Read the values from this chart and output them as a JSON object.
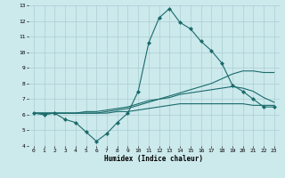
{
  "xlabel": "Humidex (Indice chaleur)",
  "ylabel": "",
  "xlim": [
    -0.5,
    23.5
  ],
  "ylim": [
    4,
    13
  ],
  "xticks": [
    0,
    1,
    2,
    3,
    4,
    5,
    6,
    7,
    8,
    9,
    10,
    11,
    12,
    13,
    14,
    15,
    16,
    17,
    18,
    19,
    20,
    21,
    22,
    23
  ],
  "yticks": [
    4,
    5,
    6,
    7,
    8,
    9,
    10,
    11,
    12,
    13
  ],
  "background_color": "#cce9ec",
  "grid_color": "#aacfd4",
  "line_color": "#1a6b6b",
  "line1_x": [
    0,
    1,
    2,
    3,
    4,
    5,
    6,
    7,
    8,
    9,
    10,
    11,
    12,
    13,
    14,
    15,
    16,
    17,
    18,
    19,
    20,
    21,
    22,
    23
  ],
  "line1_y": [
    6.1,
    6.0,
    6.1,
    5.7,
    5.5,
    4.9,
    4.3,
    4.8,
    5.5,
    6.1,
    7.5,
    10.6,
    12.2,
    12.8,
    11.9,
    11.5,
    10.7,
    10.1,
    9.3,
    7.9,
    7.5,
    7.0,
    6.5,
    6.5
  ],
  "line2_x": [
    0,
    1,
    2,
    3,
    4,
    5,
    6,
    7,
    8,
    9,
    10,
    11,
    12,
    13,
    14,
    15,
    16,
    17,
    18,
    19,
    20,
    21,
    22,
    23
  ],
  "line2_y": [
    6.1,
    6.1,
    6.1,
    6.1,
    6.1,
    6.1,
    6.1,
    6.2,
    6.3,
    6.4,
    6.6,
    6.8,
    7.0,
    7.2,
    7.4,
    7.6,
    7.8,
    8.0,
    8.3,
    8.6,
    8.8,
    8.8,
    8.7,
    8.7
  ],
  "line3_x": [
    0,
    1,
    2,
    3,
    4,
    5,
    6,
    7,
    8,
    9,
    10,
    11,
    12,
    13,
    14,
    15,
    16,
    17,
    18,
    19,
    20,
    21,
    22,
    23
  ],
  "line3_y": [
    6.1,
    6.1,
    6.1,
    6.1,
    6.1,
    6.2,
    6.2,
    6.3,
    6.4,
    6.5,
    6.7,
    6.9,
    7.0,
    7.1,
    7.3,
    7.4,
    7.5,
    7.6,
    7.7,
    7.8,
    7.7,
    7.5,
    7.1,
    6.8
  ],
  "line4_x": [
    0,
    1,
    2,
    3,
    4,
    5,
    6,
    7,
    8,
    9,
    10,
    11,
    12,
    13,
    14,
    15,
    16,
    17,
    18,
    19,
    20,
    21,
    22,
    23
  ],
  "line4_y": [
    6.1,
    6.1,
    6.1,
    6.1,
    6.1,
    6.1,
    6.1,
    6.1,
    6.2,
    6.2,
    6.3,
    6.4,
    6.5,
    6.6,
    6.7,
    6.7,
    6.7,
    6.7,
    6.7,
    6.7,
    6.7,
    6.6,
    6.6,
    6.6
  ],
  "font_family": "monospace"
}
